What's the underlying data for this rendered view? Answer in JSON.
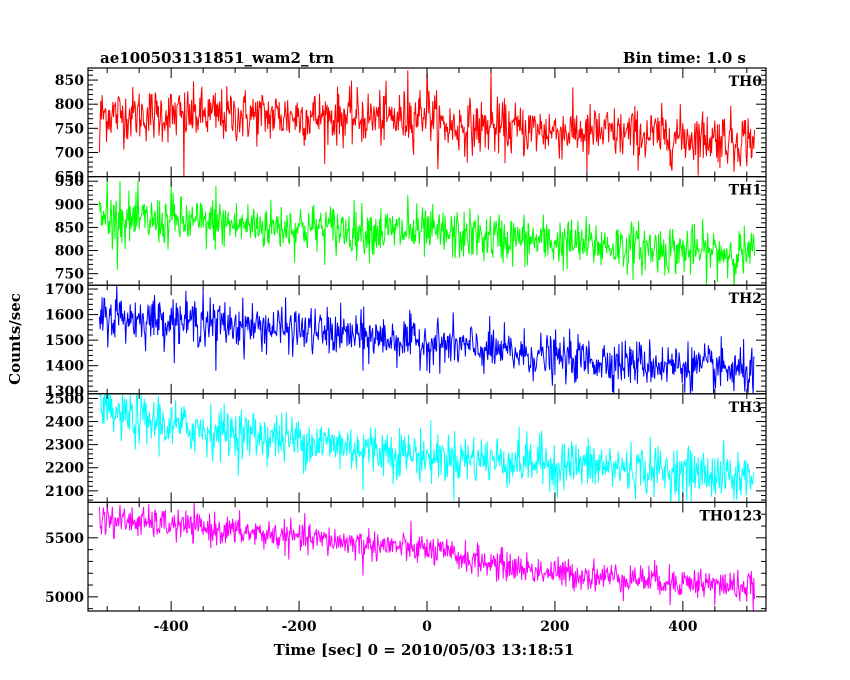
{
  "chart_data": {
    "type": "line",
    "title": "ae100503131851_wam2_trn",
    "bin_time_label": "Bin time: 1.0 s",
    "xlabel": "Time [sec] 0 = 2010/05/03 13:18:51",
    "ylabel": "Counts/sec",
    "xlim": [
      -530,
      530
    ],
    "xticks": [
      -400,
      -200,
      0,
      200,
      400
    ],
    "x_start": -512,
    "x_end": 512,
    "x_step": 1,
    "panels": [
      {
        "name": "TH0",
        "color": "#ff0000",
        "ylim": [
          650,
          875
        ],
        "yticks": [
          650,
          700,
          750,
          800,
          850
        ],
        "trend": [
          [
            -512,
            780
          ],
          [
            -400,
            778
          ],
          [
            -200,
            775
          ],
          [
            -30,
            770
          ],
          [
            0,
            790
          ],
          [
            20,
            755
          ],
          [
            200,
            745
          ],
          [
            350,
            735
          ],
          [
            512,
            728
          ]
        ],
        "noise": 28,
        "spikes": [
          [
            -512,
            700
          ],
          [
            -30,
            870
          ],
          [
            0,
            875
          ],
          [
            100,
            870
          ],
          [
            -380,
            650
          ],
          [
            250,
            660
          ],
          [
            480,
            660
          ]
        ]
      },
      {
        "name": "TH1",
        "color": "#00ff00",
        "ylim": [
          725,
          960
        ],
        "yticks": [
          750,
          800,
          850,
          900,
          950
        ],
        "trend": [
          [
            -512,
            868
          ],
          [
            -400,
            862
          ],
          [
            -200,
            850
          ],
          [
            0,
            838
          ],
          [
            200,
            818
          ],
          [
            400,
            800
          ],
          [
            512,
            792
          ]
        ],
        "noise": 27,
        "spikes": [
          [
            -500,
            955
          ],
          [
            -480,
            950
          ],
          [
            -400,
            950
          ],
          [
            -330,
            940
          ],
          [
            -30,
            920
          ]
        ]
      },
      {
        "name": "TH2",
        "color": "#0000ff",
        "ylim": [
          1290,
          1715
        ],
        "yticks": [
          1300,
          1400,
          1500,
          1600,
          1700
        ],
        "trend": [
          [
            -512,
            1590
          ],
          [
            -400,
            1580
          ],
          [
            -200,
            1540
          ],
          [
            0,
            1490
          ],
          [
            200,
            1430
          ],
          [
            400,
            1400
          ],
          [
            512,
            1375
          ]
        ],
        "noise": 45,
        "spikes": [
          [
            -485,
            1715
          ],
          [
            -350,
            1700
          ],
          [
            -330,
            1380
          ],
          [
            -100,
            1380
          ],
          [
            480,
            1300
          ],
          [
            510,
            1290
          ]
        ]
      },
      {
        "name": "TH3",
        "color": "#00ffff",
        "ylim": [
          2050,
          2520
        ],
        "yticks": [
          2100,
          2200,
          2300,
          2400,
          2500
        ],
        "trend": [
          [
            -512,
            2440
          ],
          [
            -400,
            2380
          ],
          [
            -200,
            2320
          ],
          [
            0,
            2250
          ],
          [
            200,
            2220
          ],
          [
            400,
            2180
          ],
          [
            512,
            2160
          ]
        ],
        "noise": 55,
        "spikes": [
          [
            -510,
            2520
          ],
          [
            -420,
            2510
          ],
          [
            -100,
            2100
          ],
          [
            200,
            2100
          ],
          [
            480,
            2060
          ]
        ]
      },
      {
        "name": "TH0123",
        "color": "#ff00ff",
        "ylim": [
          4880,
          5800
        ],
        "yticks": [
          5000,
          5500
        ],
        "trend": [
          [
            -512,
            5660
          ],
          [
            -400,
            5610
          ],
          [
            -200,
            5500
          ],
          [
            0,
            5400
          ],
          [
            100,
            5280
          ],
          [
            200,
            5200
          ],
          [
            400,
            5130
          ],
          [
            512,
            5080
          ]
        ],
        "noise": 65,
        "spikes": [
          [
            -500,
            5790
          ],
          [
            -490,
            5500
          ],
          [
            -100,
            5180
          ],
          [
            380,
            4930
          ],
          [
            450,
            4930
          ],
          [
            500,
            4960
          ]
        ]
      }
    ]
  }
}
